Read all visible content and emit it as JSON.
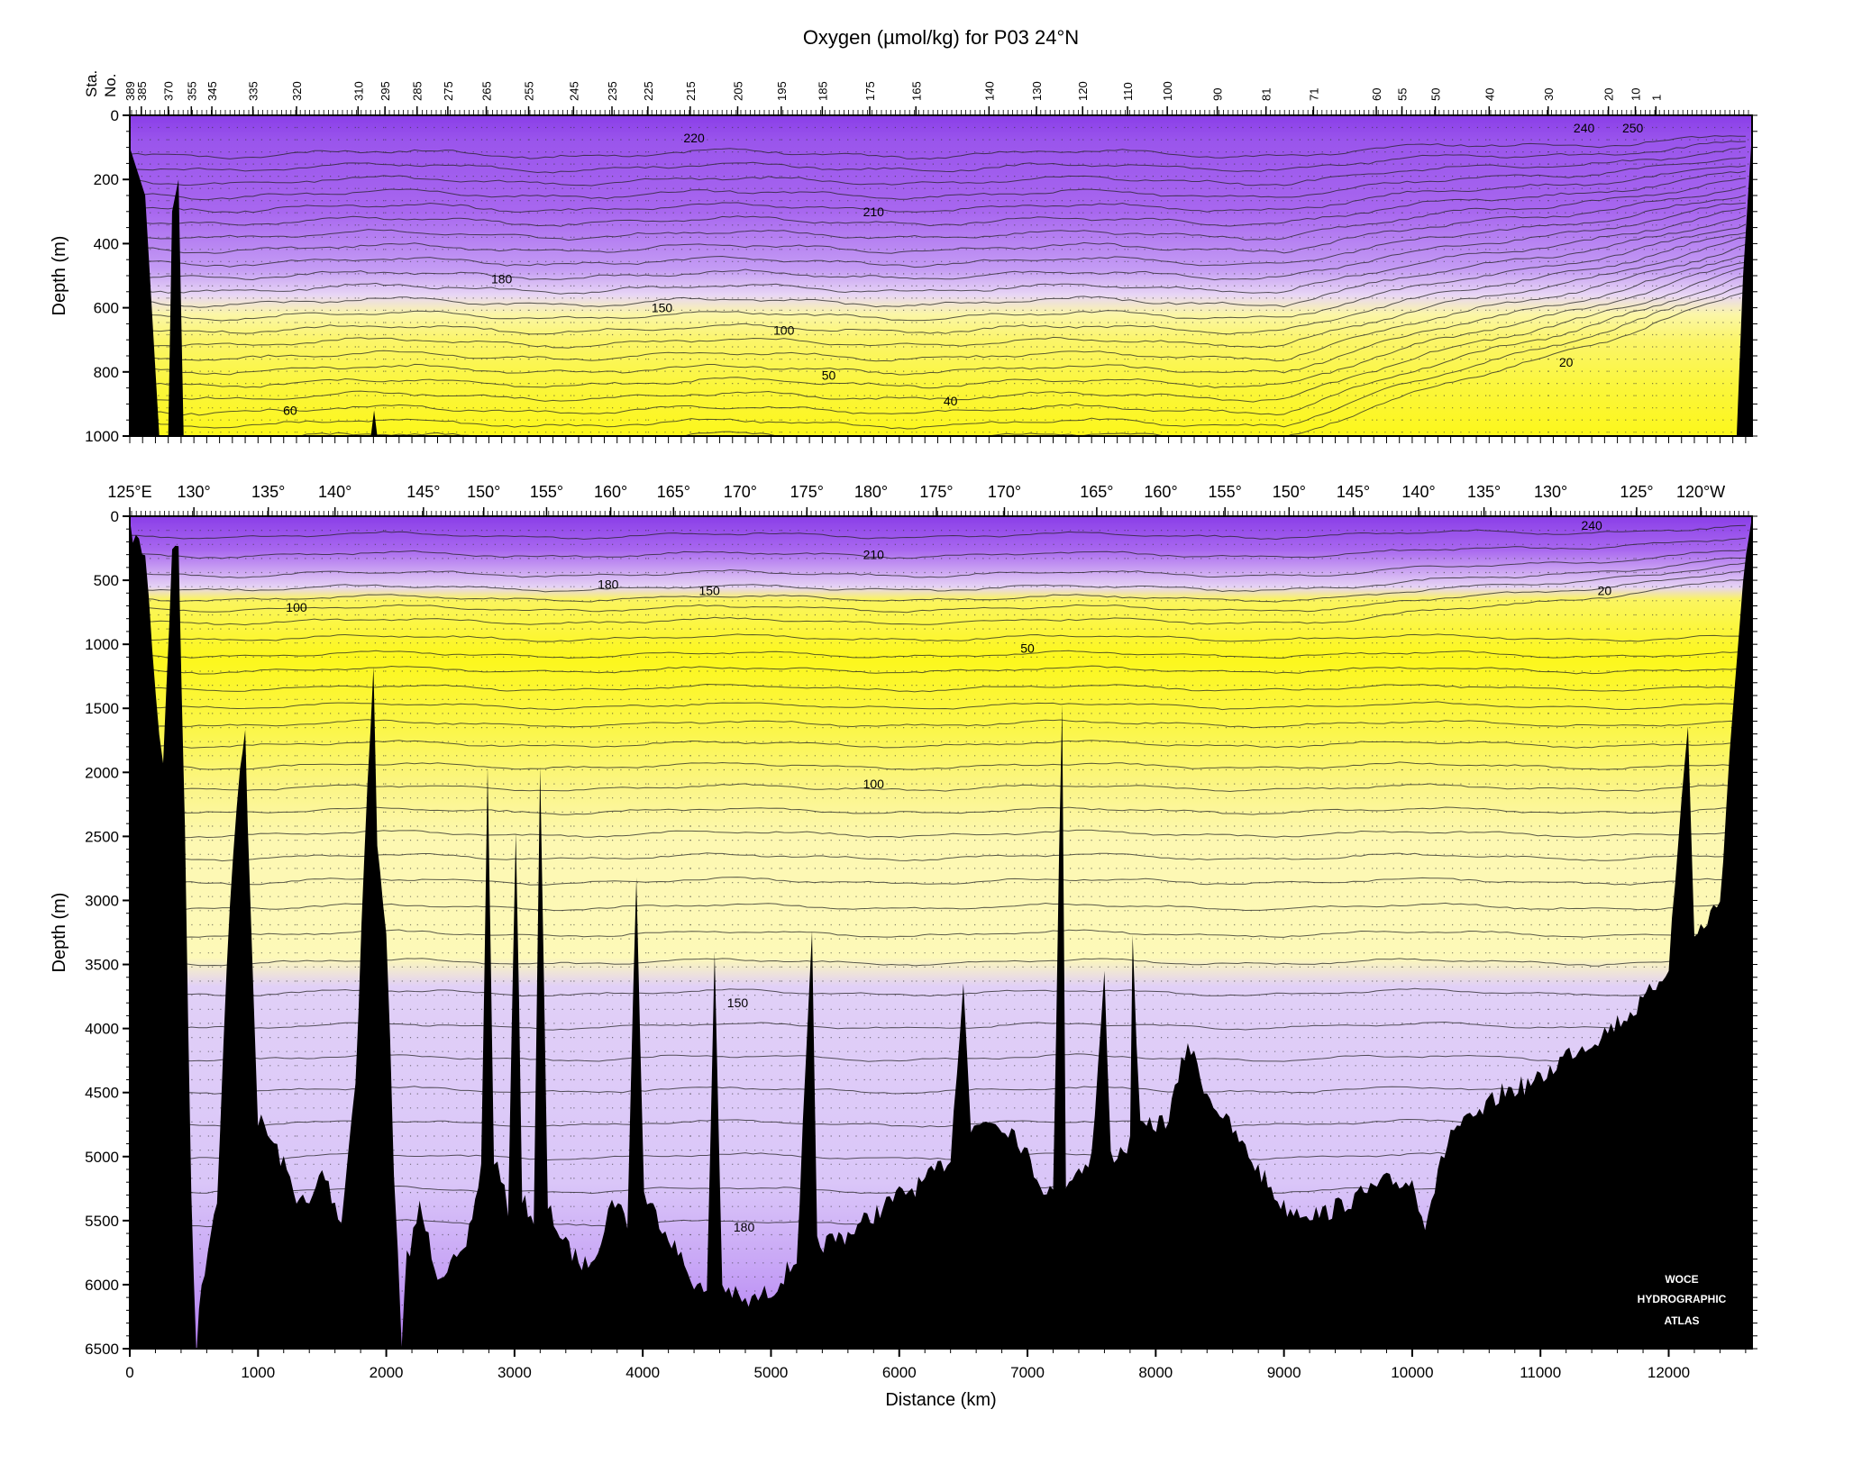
{
  "title": "Oxygen (µmol/kg) for P03 24°N",
  "station_axis_label": [
    "Sta.",
    "No."
  ],
  "stations": [
    "389",
    "385",
    "370",
    "355",
    "345",
    "335",
    "320",
    "310",
    "295",
    "285",
    "275",
    "265",
    "255",
    "245",
    "235",
    "225",
    "215",
    "205",
    "195",
    "185",
    "175",
    "165",
    "140",
    "130",
    "120",
    "110",
    "100",
    "90",
    "81",
    "71",
    "60",
    "55",
    "50",
    "40",
    "30",
    "20",
    "10",
    "1"
  ],
  "station_km": [
    0,
    90,
    300,
    480,
    640,
    960,
    1300,
    1780,
    1990,
    2240,
    2480,
    2780,
    3110,
    3460,
    3760,
    4040,
    4370,
    4740,
    5080,
    5400,
    5770,
    6130,
    6700,
    7070,
    7430,
    7780,
    8090,
    8480,
    8860,
    9230,
    9720,
    9920,
    10180,
    10600,
    11060,
    11530,
    11740,
    11900
  ],
  "watermark": [
    "WOCE",
    "HYDROGRAPHIC",
    "ATLAS"
  ],
  "chart_data": [
    {
      "type": "heatmap",
      "name": "upper",
      "title": "Oxygen (µmol/kg) for P03 24°N",
      "xlabel": "",
      "ylabel": "Depth (m)",
      "xlim": [
        0,
        12650
      ],
      "ylim": [
        1000,
        0
      ],
      "yticks": [
        0,
        200,
        400,
        600,
        800,
        1000
      ],
      "contour_labels": [
        {
          "text": "220",
          "x": 4400,
          "y": 70
        },
        {
          "text": "210",
          "x": 5800,
          "y": 300
        },
        {
          "text": "180",
          "x": 2900,
          "y": 510
        },
        {
          "text": "150",
          "x": 4150,
          "y": 600
        },
        {
          "text": "100",
          "x": 5100,
          "y": 670
        },
        {
          "text": "50",
          "x": 5450,
          "y": 810
        },
        {
          "text": "40",
          "x": 6400,
          "y": 890
        },
        {
          "text": "60",
          "x": 1250,
          "y": 920
        },
        {
          "text": "20",
          "x": 11200,
          "y": 770
        },
        {
          "text": "240",
          "x": 11340,
          "y": 40
        },
        {
          "text": "250",
          "x": 11720,
          "y": 40
        }
      ]
    },
    {
      "type": "heatmap",
      "name": "full",
      "xlabel": "Distance (km)",
      "ylabel": "Depth (m)",
      "xlim": [
        0,
        12650
      ],
      "ylim": [
        6500,
        0
      ],
      "xticks": [
        0,
        1000,
        2000,
        3000,
        4000,
        5000,
        6000,
        7000,
        8000,
        9000,
        10000,
        11000,
        12000
      ],
      "yticks": [
        0,
        500,
        1000,
        1500,
        2000,
        2500,
        3000,
        3500,
        4000,
        4500,
        5000,
        5500,
        6000,
        6500
      ],
      "longitude_labels": [
        "125°E",
        "130°",
        "135°",
        "140°",
        "145°",
        "150°",
        "155°",
        "160°",
        "165°",
        "170°",
        "175°",
        "180°",
        "175°",
        "170°",
        "165°",
        "160°",
        "155°",
        "150°",
        "145°",
        "140°",
        "135°",
        "130°",
        "125°",
        "120°W"
      ],
      "longitude_km": [
        0,
        500,
        1080,
        1600,
        2290,
        2760,
        3250,
        3750,
        4240,
        4760,
        5280,
        5780,
        6290,
        6820,
        7540,
        8040,
        8540,
        9040,
        9540,
        10050,
        10560,
        11080,
        11750,
        12250
      ],
      "contour_labels": [
        {
          "text": "210",
          "x": 5800,
          "y": 300
        },
        {
          "text": "180",
          "x": 3730,
          "y": 530
        },
        {
          "text": "150",
          "x": 4520,
          "y": 580
        },
        {
          "text": "100",
          "x": 1300,
          "y": 710
        },
        {
          "text": "50",
          "x": 7000,
          "y": 1030
        },
        {
          "text": "20",
          "x": 11500,
          "y": 580
        },
        {
          "text": "240",
          "x": 11400,
          "y": 70
        },
        {
          "text": "100",
          "x": 5800,
          "y": 2090
        },
        {
          "text": "150",
          "x": 4740,
          "y": 3800
        },
        {
          "text": "180",
          "x": 4790,
          "y": 5550
        }
      ]
    }
  ]
}
